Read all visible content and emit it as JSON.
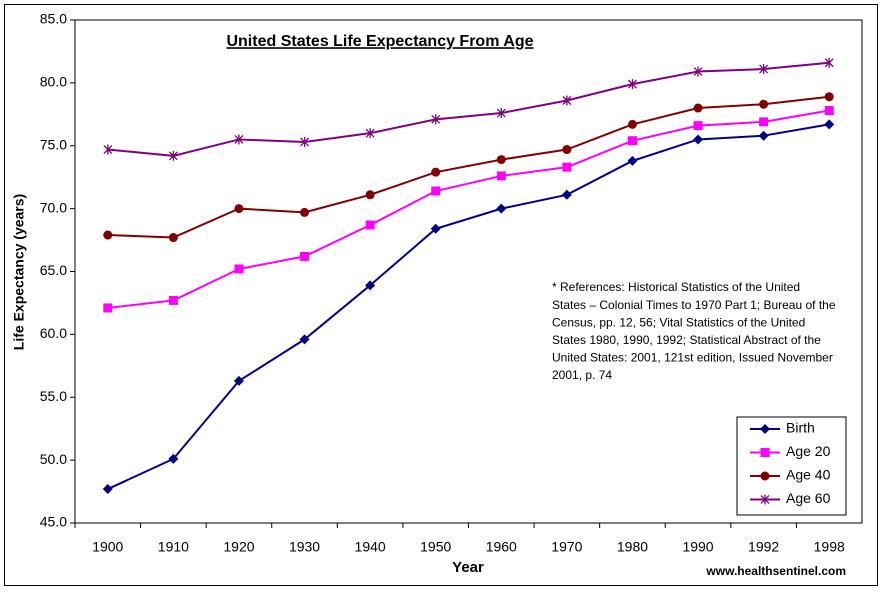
{
  "chart_data": {
    "type": "line",
    "title": "United States Life Expectancy From Age",
    "x_label": "Year",
    "y_label": "Life Expectancy (years)",
    "annotation": [
      "* References: Historical Statistics of the United",
      "States – Colonial Times to 1970 Part 1; Bureau of the",
      "Census, pp. 12, 56; Vital Statistics of the United",
      "States 1980, 1990, 1992; Statistical Abstract of the",
      "United States: 2001, 121st edition, Issued November",
      "2001, p. 74"
    ],
    "footer": "www.healthsentinel.com",
    "categories": [
      "1900",
      "1910",
      "1920",
      "1930",
      "1940",
      "1950",
      "1960",
      "1970",
      "1980",
      "1990",
      "1992",
      "1998"
    ],
    "series": [
      {
        "name": "Birth",
        "color": "#000080",
        "marker": "diamond",
        "values": [
          47.7,
          50.1,
          56.3,
          59.6,
          63.9,
          68.4,
          70.0,
          71.1,
          73.8,
          75.5,
          75.8,
          76.7
        ]
      },
      {
        "name": "Age 20",
        "color": "#ff00ff",
        "marker": "square",
        "values": [
          62.1,
          62.7,
          65.2,
          66.2,
          68.7,
          71.4,
          72.6,
          73.3,
          75.4,
          76.6,
          76.9,
          77.8
        ]
      },
      {
        "name": "Age 40",
        "color": "#800000",
        "marker": "circle",
        "values": [
          67.9,
          67.7,
          70.0,
          69.7,
          71.1,
          72.9,
          73.9,
          74.7,
          76.7,
          78.0,
          78.3,
          78.9
        ]
      },
      {
        "name": "Age 60",
        "color": "#800080",
        "marker": "star",
        "values": [
          74.7,
          74.2,
          75.5,
          75.3,
          76.0,
          77.1,
          77.6,
          78.6,
          79.9,
          80.9,
          81.1,
          81.6
        ]
      }
    ],
    "ylim": [
      45,
      85
    ],
    "yticks": [
      {
        "value": 45,
        "label": "45.0"
      },
      {
        "value": 50,
        "label": "50.0"
      },
      {
        "value": 55,
        "label": "55.0"
      },
      {
        "value": 60,
        "label": "60.0"
      },
      {
        "value": 65,
        "label": "65.0"
      },
      {
        "value": 70,
        "label": "70.0"
      },
      {
        "value": 75,
        "label": "75.0"
      },
      {
        "value": 80,
        "label": "80.0"
      },
      {
        "value": 85,
        "label": "85.0"
      }
    ],
    "grid": false,
    "legend": "bottom-right"
  }
}
